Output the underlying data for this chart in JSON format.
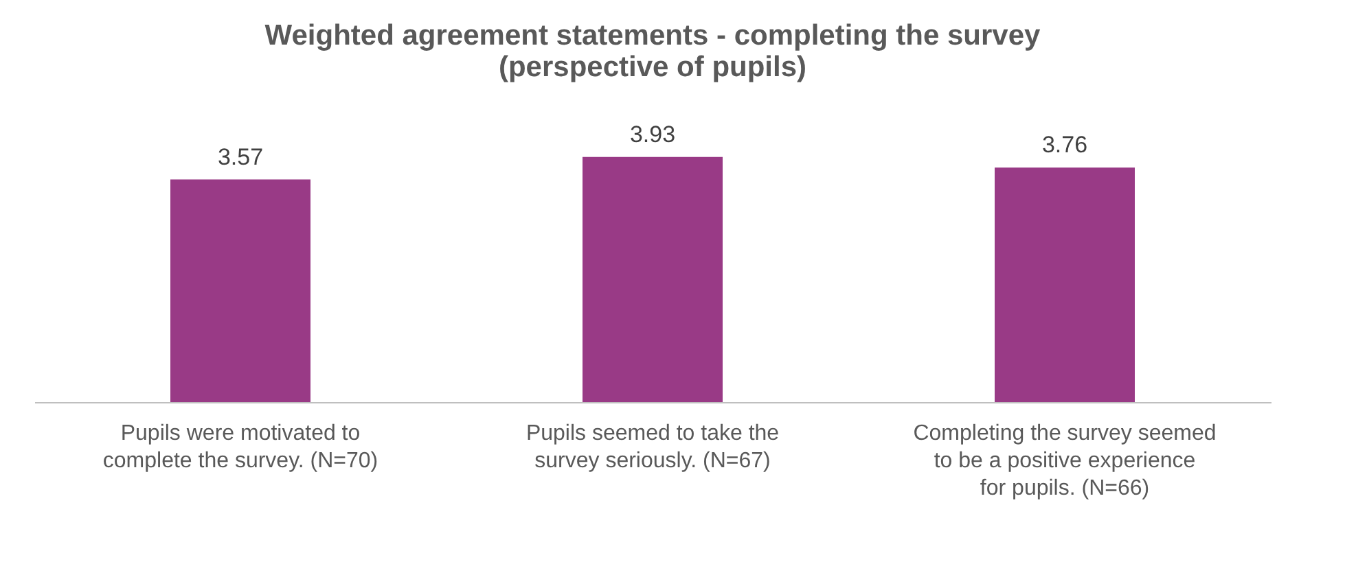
{
  "chart_data": {
    "type": "bar",
    "title": "Weighted agreement statements - completing the survey\n(perspective of pupils)",
    "categories": [
      "Pupils were motivated to complete the survey. (N=70)",
      "Pupils seemed to take the survey seriously. (N=67)",
      "Completing the survey seemed to be a positive experience for pupils. (N=66)"
    ],
    "values": [
      3.57,
      3.93,
      3.76
    ],
    "color": "#993a86",
    "data_labels": true,
    "grid": false
  }
}
